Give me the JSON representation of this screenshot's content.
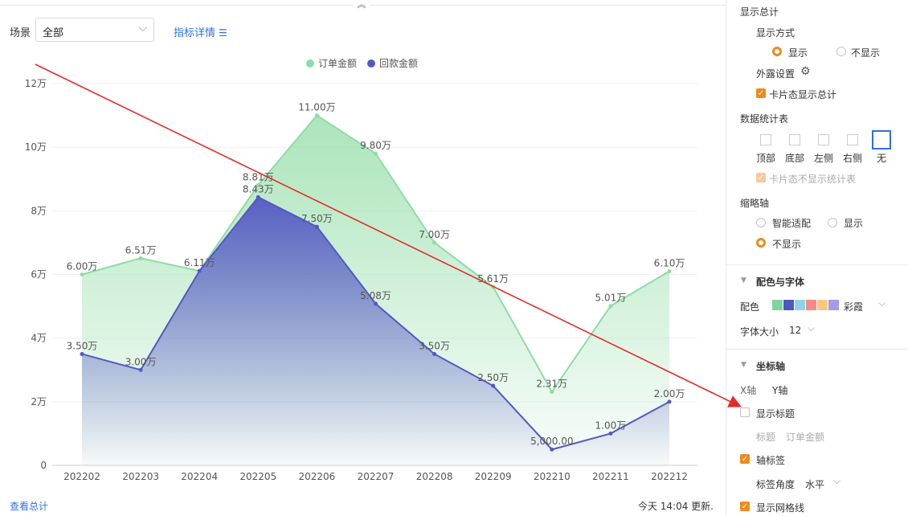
{
  "header": {
    "scene_label": "场景",
    "scene_value": "全部",
    "detail_link": "指标详情"
  },
  "footer": {
    "view_total": "查看总计",
    "update_time": "今天 14:04 更新."
  },
  "chart_data": {
    "type": "area",
    "categories": [
      "202202",
      "202203",
      "202204",
      "202205",
      "202206",
      "202207",
      "202208",
      "202209",
      "202210",
      "202211",
      "202212"
    ],
    "series": [
      {
        "name": "订单金额",
        "values": [
          60000,
          65100,
          61100,
          88100,
          110000,
          98000,
          70000,
          56100,
          23100,
          50100,
          61000
        ],
        "labels": [
          "6.00万",
          "6.51万",
          "6.11万",
          "8.81万",
          "11.00万",
          "9.80万",
          "7.00万",
          "5.61万",
          "2.31万",
          "5.01万",
          "6.10万"
        ],
        "color": "#8fdca4"
      },
      {
        "name": "回款金额",
        "values": [
          35000,
          30000,
          61100,
          84300,
          75000,
          50800,
          35000,
          25000,
          5000,
          10000,
          20000
        ],
        "labels": [
          "3.50万",
          "3.00万",
          "",
          "8.43万",
          "7.50万",
          "5.08万",
          "3.50万",
          "2.50万",
          "5,000.00",
          "1.00万",
          "2.00万"
        ],
        "color": "#5458c4"
      }
    ],
    "y_ticks": [
      "0",
      "2万",
      "4万",
      "6万",
      "8万",
      "10万",
      "12万"
    ],
    "ylim": [
      0,
      120000
    ],
    "grid": true,
    "legend_position": "top-center"
  },
  "panel": {
    "show_total": "显示总计",
    "display_mode": "显示方式",
    "opt_show": "显示",
    "opt_hide": "不显示",
    "exposure": "外露设置",
    "card_show_total": "卡片态显示总计",
    "stats_table": "数据统计表",
    "pos_top": "顶部",
    "pos_bottom": "底部",
    "pos_left": "左侧",
    "pos_right": "右侧",
    "pos_none": "无",
    "card_hide_stats": "卡片态不显示统计表",
    "thumb_axis": "缩略轴",
    "opt_smart": "智能适配",
    "opt_show2": "显示",
    "opt_hide2": "不显示",
    "color_font": "配色与字体",
    "color_label": "配色",
    "palette_name": "彩霞",
    "palette": [
      "#7fd4a0",
      "#4f56c2",
      "#8fd3e8",
      "#f88a86",
      "#f8c97d",
      "#a59be8"
    ],
    "font_size_label": "字体大小",
    "font_size": "12",
    "axis_section": "坐标轴",
    "x_axis": "X轴",
    "y_axis": "Y轴",
    "show_title": "显示标题",
    "title_label": "标题",
    "title_value": "订单金额",
    "axis_labels": "轴标签",
    "label_angle": "标签角度",
    "label_angle_value": "水平",
    "show_grid": "显示网格线"
  }
}
